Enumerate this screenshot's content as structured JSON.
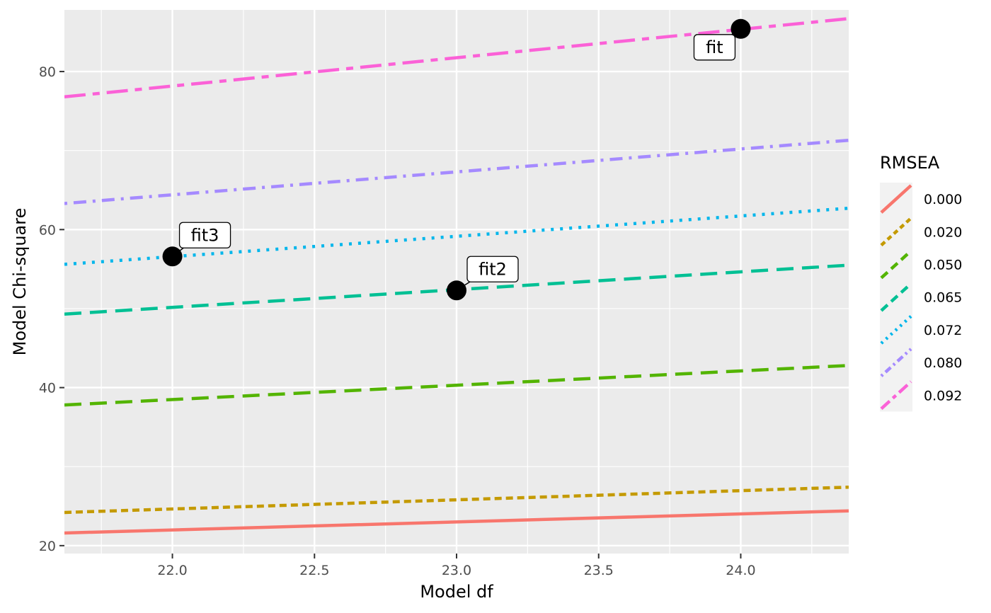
{
  "chart_data": {
    "type": "line",
    "title": "",
    "xlabel": "Model df",
    "ylabel": "Model Chi-square",
    "xlim": [
      21.62,
      24.38
    ],
    "ylim": [
      19.0,
      87.8
    ],
    "x_ticks": [
      22.0,
      22.5,
      23.0,
      23.5,
      24.0
    ],
    "x_tick_labels": [
      "22.0",
      "22.5",
      "23.0",
      "23.5",
      "24.0"
    ],
    "x_minor_ticks": [
      21.75,
      22.25,
      22.75,
      23.25,
      23.75,
      24.25
    ],
    "y_ticks": [
      20,
      40,
      60,
      80
    ],
    "y_tick_labels": [
      "20",
      "40",
      "60",
      "80"
    ],
    "y_minor_ticks": [
      30,
      50,
      70
    ],
    "grid": true,
    "legend": {
      "title": "RMSEA",
      "placement": "right"
    },
    "series": [
      {
        "name": "0.000",
        "color": "#F8766D",
        "dash": "solid",
        "x": [
          21.62,
          24.38
        ],
        "y": [
          21.6,
          24.4
        ]
      },
      {
        "name": "0.020",
        "color": "#C49A00",
        "dash": "dashed",
        "x": [
          21.62,
          24.38
        ],
        "y": [
          24.2,
          27.4
        ]
      },
      {
        "name": "0.050",
        "color": "#53B400",
        "dash": "longdash",
        "x": [
          21.62,
          24.38
        ],
        "y": [
          37.8,
          42.8
        ]
      },
      {
        "name": "0.065",
        "color": "#00C094",
        "dash": "longdash",
        "x": [
          21.62,
          24.38
        ],
        "y": [
          49.3,
          55.5
        ]
      },
      {
        "name": "0.072",
        "color": "#00B6EB",
        "dash": "dotted",
        "x": [
          21.62,
          24.38
        ],
        "y": [
          55.6,
          62.7
        ]
      },
      {
        "name": "0.080",
        "color": "#A58AFF",
        "dash": "dotdash",
        "x": [
          21.62,
          24.38
        ],
        "y": [
          63.3,
          71.3
        ]
      },
      {
        "name": "0.092",
        "color": "#FB61D7",
        "dash": "twodash",
        "x": [
          21.62,
          24.38
        ],
        "y": [
          76.8,
          86.7
        ]
      }
    ],
    "points": [
      {
        "label": "fit",
        "x": 24.0,
        "y": 85.4
      },
      {
        "label": "fit2",
        "x": 23.0,
        "y": 52.3
      },
      {
        "label": "fit3",
        "x": 22.0,
        "y": 56.6
      }
    ]
  }
}
